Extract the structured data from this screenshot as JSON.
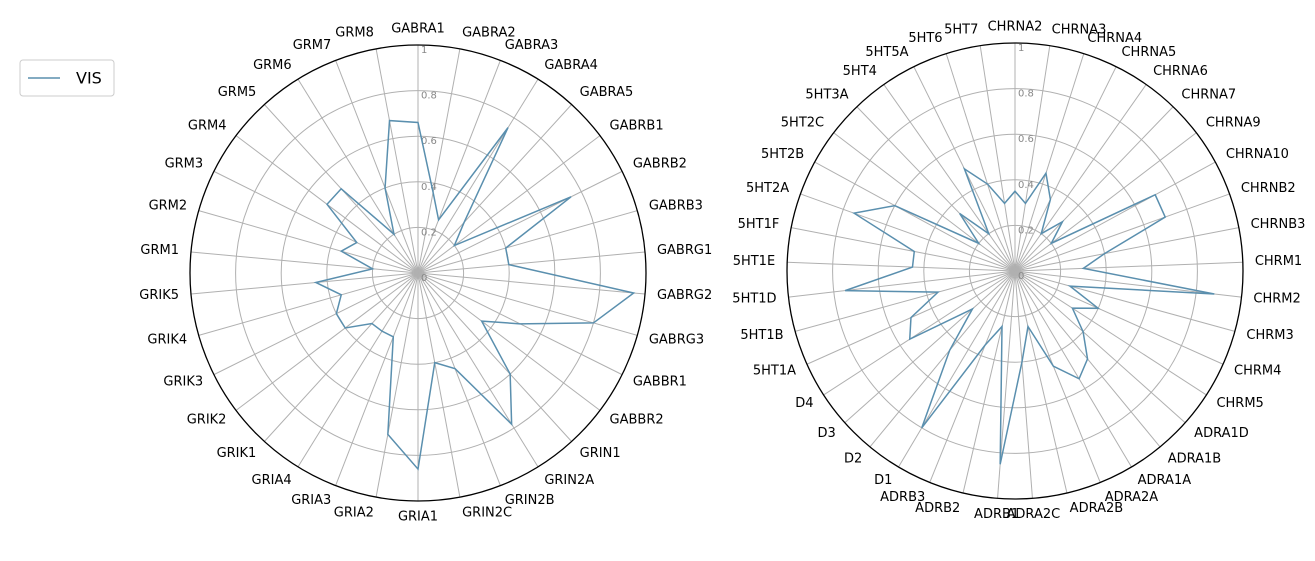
{
  "chart_data": [
    {
      "type": "radar",
      "categories": [
        "GABRA1",
        "GABRA2",
        "GABRA3",
        "GABRA4",
        "GABRA5",
        "GABRB1",
        "GABRB2",
        "GABRB3",
        "GABRG1",
        "GABRG2",
        "GABRG3",
        "GABBR1",
        "GABBR2",
        "GRIN1",
        "GRIN2A",
        "GRIN2B",
        "GRIN2C",
        "GRIA1",
        "GRIA2",
        "GRIA3",
        "GRIA4",
        "GRIK1",
        "GRIK2",
        "GRIK3",
        "GRIK4",
        "GRIK5",
        "GRM1",
        "GRM2",
        "GRM3",
        "GRM4",
        "GRM5",
        "GRM6",
        "GRM7",
        "GRM8"
      ],
      "series": [
        {
          "name": "VIS",
          "color": "#5a8fae",
          "values": [
            0.66,
            0.36,
            0.25,
            0.75,
            0.3,
            0.2,
            0.75,
            0.4,
            0.4,
            0.95,
            0.8,
            0.5,
            0.35,
            0.6,
            0.78,
            0.45,
            0.4,
            0.86,
            0.72,
            0.3,
            0.3,
            0.3,
            0.4,
            0.4,
            0.35,
            0.45,
            0.2,
            0.35,
            0.3,
            0.5,
            0.5,
            0.2,
            0.4,
            0.68
          ]
        }
      ],
      "rlim": [
        0,
        1
      ],
      "rticks": [
        0,
        0.2,
        0.4,
        0.6,
        0.8,
        1
      ],
      "grid": true,
      "legend": "upper left"
    },
    {
      "type": "radar",
      "categories": [
        "CHRNA2",
        "CHRNA3",
        "CHRNA4",
        "CHRNA5",
        "CHRNA6",
        "CHRNA7",
        "CHRNA9",
        "CHRNA10",
        "CHRNB2",
        "CHRNB3",
        "CHRM1",
        "CHRM2",
        "CHRM3",
        "CHRM4",
        "CHRM5",
        "ADRA1D",
        "ADRA1B",
        "ADRA1A",
        "ADRA2A",
        "ADRA2B",
        "ADRA2C",
        "ADRB1",
        "ADRB2",
        "ADRB3",
        "D1",
        "D2",
        "D3",
        "D4",
        "5HT1A",
        "5HT1B",
        "5HT1D",
        "5HT1E",
        "5HT1F",
        "5HT2A",
        "5HT2B",
        "5HT2C",
        "5HT3A",
        "5HT4",
        "5HT5A",
        "5HT6",
        "5HT7"
      ],
      "series": [
        {
          "color": "#5a8fae",
          "values": [
            0.35,
            0.3,
            0.45,
            0.35,
            0.2,
            0.3,
            0.2,
            0.7,
            0.7,
            0.4,
            0.3,
            0.88,
            0.25,
            0.4,
            0.3,
            0.4,
            0.5,
            0.55,
            0.45,
            0.25,
            0.4,
            0.85,
            0.25,
            0.35,
            0.8,
            0.45,
            0.25,
            0.55,
            0.5,
            0.35,
            0.75,
            0.45,
            0.45,
            0.75,
            0.6,
            0.2,
            0.35,
            0.2,
            0.5,
            0.4,
            0.3
          ]
        }
      ],
      "rlim": [
        0,
        1
      ],
      "rticks": [
        0,
        0.2,
        0.4,
        0.6,
        0.8,
        1
      ],
      "grid": true
    }
  ]
}
